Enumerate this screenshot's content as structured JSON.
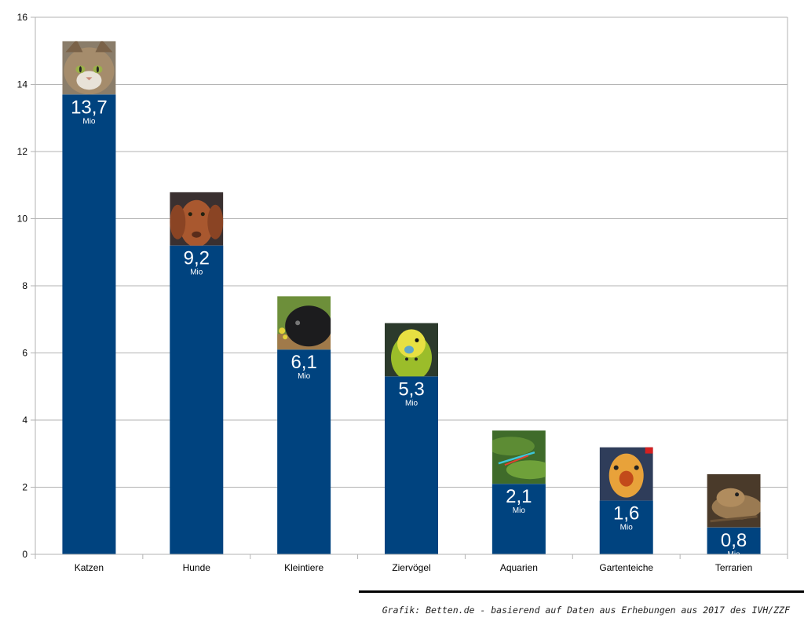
{
  "chart_data": {
    "type": "bar",
    "categories": [
      "Katzen",
      "Hunde",
      "Kleintiere",
      "Ziervögel",
      "Aquarien",
      "Gartenteiche",
      "Terrarien"
    ],
    "values": [
      13.7,
      9.2,
      6.1,
      5.3,
      2.1,
      1.6,
      0.8
    ],
    "value_labels": [
      "13,7",
      "9,2",
      "6,1",
      "5,3",
      "2,1",
      "1,6",
      "0,8"
    ],
    "unit_label": "Mio",
    "yticks": [
      0,
      2,
      4,
      6,
      8,
      10,
      12,
      14,
      16
    ],
    "ylim": [
      0,
      16
    ],
    "grid": true,
    "bar_color": "#00437f",
    "photo_icons": [
      "cat-photo",
      "dog-photo",
      "guinea-pig-photo",
      "budgie-photo",
      "aquarium-fish-photo",
      "koi-photo",
      "bearded-dragon-photo"
    ]
  },
  "caption": "Grafik: Betten.de - basierend auf Daten aus Erhebungen aus 2017 des IVH/ZZF"
}
